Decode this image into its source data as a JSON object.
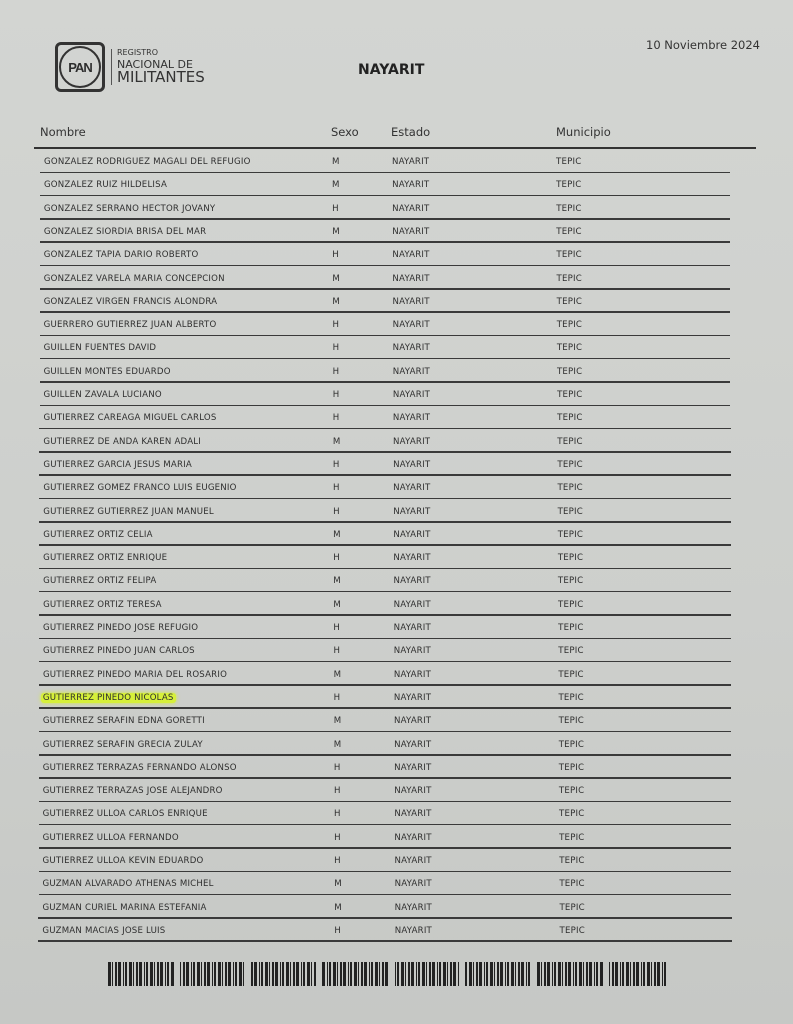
{
  "header": {
    "logo_text": {
      "mark": "PAN",
      "line1": "REGISTRO",
      "line2": "NACIONAL DE",
      "line3": "MILITANTES"
    },
    "title": "NAYARIT",
    "date": "10 Noviembre 2024"
  },
  "table": {
    "columns": [
      "Nombre",
      "Sexo",
      "Estado",
      "Municipio"
    ],
    "highlight_color": "#d6f03a",
    "rows": [
      {
        "nombre": "GONZALEZ RODRIGUEZ MAGALI DEL REFUGIO",
        "sexo": "M",
        "estado": "NAYARIT",
        "municipio": "TEPIC"
      },
      {
        "nombre": "GONZALEZ RUIZ HILDELISA",
        "sexo": "M",
        "estado": "NAYARIT",
        "municipio": "TEPIC"
      },
      {
        "nombre": "GONZALEZ SERRANO HECTOR JOVANY",
        "sexo": "H",
        "estado": "NAYARIT",
        "municipio": "TEPIC"
      },
      {
        "nombre": "GONZALEZ SIORDIA BRISA DEL MAR",
        "sexo": "M",
        "estado": "NAYARIT",
        "municipio": "TEPIC"
      },
      {
        "nombre": "GONZALEZ TAPIA DARIO ROBERTO",
        "sexo": "H",
        "estado": "NAYARIT",
        "municipio": "TEPIC"
      },
      {
        "nombre": "GONZALEZ VARELA MARIA CONCEPCION",
        "sexo": "M",
        "estado": "NAYARIT",
        "municipio": "TEPIC"
      },
      {
        "nombre": "GONZALEZ VIRGEN FRANCIS ALONDRA",
        "sexo": "M",
        "estado": "NAYARIT",
        "municipio": "TEPIC"
      },
      {
        "nombre": "GUERRERO GUTIERREZ JUAN ALBERTO",
        "sexo": "H",
        "estado": "NAYARIT",
        "municipio": "TEPIC"
      },
      {
        "nombre": "GUILLEN FUENTES DAVID",
        "sexo": "H",
        "estado": "NAYARIT",
        "municipio": "TEPIC"
      },
      {
        "nombre": "GUILLEN MONTES EDUARDO",
        "sexo": "H",
        "estado": "NAYARIT",
        "municipio": "TEPIC"
      },
      {
        "nombre": "GUILLEN ZAVALA LUCIANO",
        "sexo": "H",
        "estado": "NAYARIT",
        "municipio": "TEPIC"
      },
      {
        "nombre": "GUTIERREZ CAREAGA MIGUEL CARLOS",
        "sexo": "H",
        "estado": "NAYARIT",
        "municipio": "TEPIC"
      },
      {
        "nombre": "GUTIERREZ DE ANDA KAREN ADALI",
        "sexo": "M",
        "estado": "NAYARIT",
        "municipio": "TEPIC"
      },
      {
        "nombre": "GUTIERREZ GARCIA JESUS MARIA",
        "sexo": "H",
        "estado": "NAYARIT",
        "municipio": "TEPIC"
      },
      {
        "nombre": "GUTIERREZ GOMEZ FRANCO LUIS EUGENIO",
        "sexo": "H",
        "estado": "NAYARIT",
        "municipio": "TEPIC"
      },
      {
        "nombre": "GUTIERREZ GUTIERREZ JUAN MANUEL",
        "sexo": "H",
        "estado": "NAYARIT",
        "municipio": "TEPIC"
      },
      {
        "nombre": "GUTIERREZ ORTIZ CELIA",
        "sexo": "M",
        "estado": "NAYARIT",
        "municipio": "TEPIC"
      },
      {
        "nombre": "GUTIERREZ ORTIZ ENRIQUE",
        "sexo": "H",
        "estado": "NAYARIT",
        "municipio": "TEPIC"
      },
      {
        "nombre": "GUTIERREZ ORTIZ FELIPA",
        "sexo": "M",
        "estado": "NAYARIT",
        "municipio": "TEPIC"
      },
      {
        "nombre": "GUTIERREZ ORTIZ TERESA",
        "sexo": "M",
        "estado": "NAYARIT",
        "municipio": "TEPIC"
      },
      {
        "nombre": "GUTIERREZ PINEDO JOSE REFUGIO",
        "sexo": "H",
        "estado": "NAYARIT",
        "municipio": "TEPIC"
      },
      {
        "nombre": "GUTIERREZ PINEDO JUAN CARLOS",
        "sexo": "H",
        "estado": "NAYARIT",
        "municipio": "TEPIC"
      },
      {
        "nombre": "GUTIERREZ PINEDO MARIA DEL ROSARIO",
        "sexo": "M",
        "estado": "NAYARIT",
        "municipio": "TEPIC"
      },
      {
        "nombre": "GUTIERREZ PINEDO NICOLAS",
        "sexo": "H",
        "estado": "NAYARIT",
        "municipio": "TEPIC",
        "highlighted": true
      },
      {
        "nombre": "GUTIERREZ SERAFIN EDNA GORETTI",
        "sexo": "M",
        "estado": "NAYARIT",
        "municipio": "TEPIC"
      },
      {
        "nombre": "GUTIERREZ SERAFIN GRECIA ZULAY",
        "sexo": "M",
        "estado": "NAYARIT",
        "municipio": "TEPIC"
      },
      {
        "nombre": "GUTIERREZ TERRAZAS FERNANDO ALONSO",
        "sexo": "H",
        "estado": "NAYARIT",
        "municipio": "TEPIC"
      },
      {
        "nombre": "GUTIERREZ TERRAZAS JOSE ALEJANDRO",
        "sexo": "H",
        "estado": "NAYARIT",
        "municipio": "TEPIC"
      },
      {
        "nombre": "GUTIERREZ ULLOA CARLOS ENRIQUE",
        "sexo": "H",
        "estado": "NAYARIT",
        "municipio": "TEPIC"
      },
      {
        "nombre": "GUTIERREZ ULLOA FERNANDO",
        "sexo": "H",
        "estado": "NAYARIT",
        "municipio": "TEPIC"
      },
      {
        "nombre": "GUTIERREZ ULLOA KEVIN EDUARDO",
        "sexo": "H",
        "estado": "NAYARIT",
        "municipio": "TEPIC"
      },
      {
        "nombre": "GUZMAN ALVARADO ATHENAS MICHEL",
        "sexo": "M",
        "estado": "NAYARIT",
        "municipio": "TEPIC"
      },
      {
        "nombre": "GUZMAN CURIEL MARINA ESTEFANIA",
        "sexo": "M",
        "estado": "NAYARIT",
        "municipio": "TEPIC"
      },
      {
        "nombre": "GUZMAN MACIAS JOSE LUIS",
        "sexo": "H",
        "estado": "NAYARIT",
        "municipio": "TEPIC"
      }
    ]
  }
}
